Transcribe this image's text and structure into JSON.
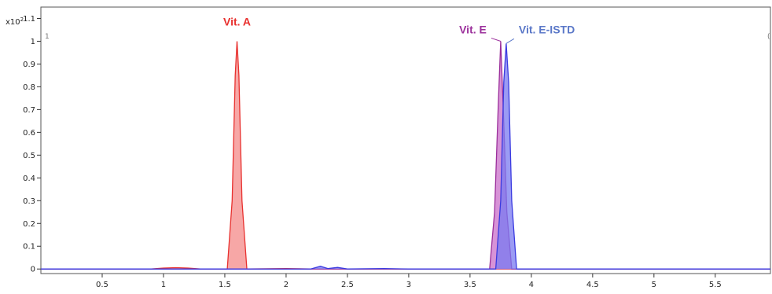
{
  "chart_data": {
    "type": "line",
    "title": "",
    "xlabel": "",
    "ylabel": "",
    "y_multiplier_label": "x10",
    "y_multiplier_exp": "2",
    "corner_left": "1",
    "corner_right": "(",
    "xlim": [
      0,
      5.95
    ],
    "ylim": [
      -0.02,
      1.15
    ],
    "x_ticks": [
      0.5,
      1,
      1.5,
      2,
      2.5,
      3,
      3.5,
      4,
      4.5,
      5,
      5.5
    ],
    "x_tick_labels": [
      "0.5",
      "1",
      "1.5",
      "2",
      "2.5",
      "3",
      "3.5",
      "4",
      "4.5",
      "5",
      "5.5"
    ],
    "y_ticks": [
      0,
      0.1,
      0.2,
      0.3,
      0.4,
      0.5,
      0.6,
      0.7,
      0.8,
      0.9,
      1,
      1.1
    ],
    "y_tick_labels": [
      "0",
      "0.1",
      "0.2",
      "0.3",
      "0.4",
      "0.5",
      "0.6",
      "0.7",
      "0.8",
      "0.9",
      "1",
      "1.1"
    ],
    "grid": false,
    "series": [
      {
        "name": "Vit. A",
        "color": "#e8312f",
        "fill": "#f48a88",
        "points": [
          [
            0,
            0
          ],
          [
            0.9,
            0
          ],
          [
            1.0,
            0.004
          ],
          [
            1.1,
            0.006
          ],
          [
            1.2,
            0.004
          ],
          [
            1.3,
            0
          ],
          [
            1.52,
            0
          ],
          [
            1.56,
            0.3
          ],
          [
            1.585,
            0.85
          ],
          [
            1.6,
            1.0
          ],
          [
            1.615,
            0.85
          ],
          [
            1.64,
            0.3
          ],
          [
            1.68,
            0
          ],
          [
            2.0,
            0.002
          ],
          [
            2.2,
            0
          ],
          [
            5.95,
            0
          ]
        ]
      },
      {
        "name": "Vit. E",
        "color": "#9b2f9b",
        "fill": "#c96fc9",
        "points": [
          [
            0,
            0
          ],
          [
            3.66,
            0
          ],
          [
            3.7,
            0.25
          ],
          [
            3.73,
            0.72
          ],
          [
            3.75,
            1.0
          ],
          [
            3.77,
            0.72
          ],
          [
            3.8,
            0.25
          ],
          [
            3.84,
            0
          ],
          [
            5.95,
            0
          ]
        ]
      },
      {
        "name": "Vit. E-ISTD",
        "color": "#3a3ae0",
        "fill": "#7a7af0",
        "points": [
          [
            0,
            0
          ],
          [
            2.2,
            0
          ],
          [
            2.28,
            0.012
          ],
          [
            2.34,
            0.002
          ],
          [
            2.42,
            0.007
          ],
          [
            2.5,
            0
          ],
          [
            2.8,
            0.002
          ],
          [
            3.0,
            0
          ],
          [
            3.71,
            0
          ],
          [
            3.75,
            0.3
          ],
          [
            3.775,
            0.82
          ],
          [
            3.795,
            0.99
          ],
          [
            3.815,
            0.82
          ],
          [
            3.84,
            0.3
          ],
          [
            3.88,
            0
          ],
          [
            5.95,
            0
          ]
        ]
      }
    ],
    "annotations": [
      {
        "text": "Vit. A",
        "color": "#e8312f",
        "x": 1.6,
        "y": 1.0
      },
      {
        "text": "Vit. E",
        "color": "#9b2f9b",
        "x": 3.75,
        "y": 1.0
      },
      {
        "text": "Vit. E-ISTD",
        "color": "#5b78c8",
        "x": 3.795,
        "y": 0.99
      }
    ]
  }
}
